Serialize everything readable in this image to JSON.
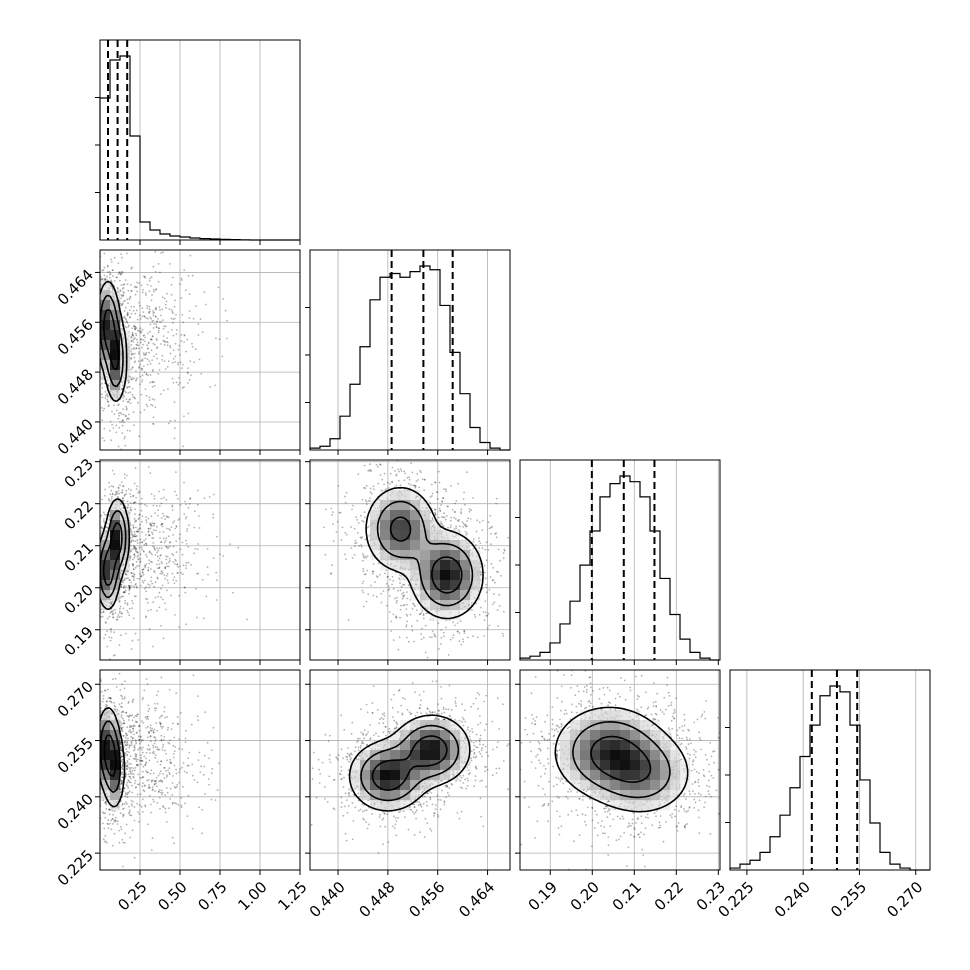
{
  "chart_data": {
    "type": "corner",
    "title": "",
    "parameters": [
      {
        "label": "",
        "range": [
          0.0,
          1.25
        ],
        "ticks": [
          "0.25",
          "0.50",
          "0.75",
          "1.00",
          "1.25"
        ],
        "tick_values": [
          0.25,
          0.5,
          0.75,
          1.0,
          1.25
        ],
        "quantiles": [
          0.05,
          0.11,
          0.17
        ],
        "hist": [
          0.71,
          0.9,
          0.92,
          0.52,
          0.09,
          0.05,
          0.03,
          0.02,
          0.015,
          0.01,
          0.007,
          0.005,
          0.003,
          0.002,
          0.001,
          0,
          0,
          0,
          0,
          0
        ]
      },
      {
        "label": "",
        "range": [
          0.4355,
          0.4676
        ],
        "ticks": [
          "0.440",
          "0.448",
          "0.456",
          "0.464"
        ],
        "tick_values": [
          0.44,
          0.448,
          0.456,
          0.464
        ],
        "quantiles": [
          0.4486,
          0.4537,
          0.4584
        ],
        "hist": [
          0.01,
          0.02,
          0.06,
          0.18,
          0.35,
          0.55,
          0.8,
          0.92,
          0.94,
          0.92,
          0.95,
          0.98,
          0.96,
          0.77,
          0.52,
          0.3,
          0.12,
          0.04,
          0.01,
          0
        ]
      },
      {
        "label": "",
        "range": [
          0.1828,
          0.2304
        ],
        "ticks": [
          "0.19",
          "0.20",
          "0.21",
          "0.22",
          "0.23"
        ],
        "tick_values": [
          0.19,
          0.2,
          0.21,
          0.22,
          0.23
        ],
        "quantiles": [
          0.1999,
          0.2075,
          0.2148
        ],
        "hist": [
          0.01,
          0.02,
          0.04,
          0.09,
          0.19,
          0.31,
          0.5,
          0.68,
          0.86,
          0.93,
          0.97,
          0.94,
          0.86,
          0.68,
          0.43,
          0.24,
          0.11,
          0.04,
          0.01,
          0
        ]
      },
      {
        "label": "",
        "range": [
          0.2205,
          0.2738
        ],
        "ticks": [
          "0.225",
          "0.240",
          "0.255",
          "0.270"
        ],
        "tick_values": [
          0.225,
          0.24,
          0.255,
          0.27
        ],
        "quantiles": [
          0.2423,
          0.249,
          0.2544
        ],
        "hist": [
          0.01,
          0.03,
          0.05,
          0.09,
          0.17,
          0.28,
          0.42,
          0.58,
          0.74,
          0.89,
          0.94,
          0.91,
          0.74,
          0.46,
          0.24,
          0.09,
          0.03,
          0.01,
          0,
          0
        ]
      }
    ],
    "pairs": [
      {
        "x": 0,
        "y": 1,
        "modes": [
          {
            "mx": 0.05,
            "my": 0.4555,
            "sx": 0.035,
            "sy": 0.0035,
            "w": 0.55
          },
          {
            "mx": 0.1,
            "my": 0.45,
            "sx": 0.035,
            "sy": 0.0035,
            "w": 0.45
          }
        ],
        "tail_x": 0.12
      },
      {
        "x": 0,
        "y": 2,
        "modes": [
          {
            "mx": 0.05,
            "my": 0.204,
            "sx": 0.035,
            "sy": 0.0045,
            "w": 0.5
          },
          {
            "mx": 0.11,
            "my": 0.212,
            "sx": 0.035,
            "sy": 0.0045,
            "w": 0.5
          }
        ],
        "tail_x": 0.12
      },
      {
        "x": 0,
        "y": 3,
        "modes": [
          {
            "mx": 0.05,
            "my": 0.253,
            "sx": 0.035,
            "sy": 0.0055,
            "w": 0.6
          },
          {
            "mx": 0.09,
            "my": 0.247,
            "sx": 0.035,
            "sy": 0.0055,
            "w": 0.4
          }
        ],
        "tail_x": 0.12
      },
      {
        "x": 1,
        "y": 2,
        "modes": [
          {
            "mx": 0.45,
            "my": 0.214,
            "sx": 0.0028,
            "sy": 0.005,
            "w": 0.45
          },
          {
            "mx": 0.4575,
            "my": 0.203,
            "sx": 0.0028,
            "sy": 0.005,
            "w": 0.55
          }
        ],
        "tail_x": 0
      },
      {
        "x": 1,
        "y": 3,
        "modes": [
          {
            "mx": 0.448,
            "my": 0.2455,
            "sx": 0.003,
            "sy": 0.0045,
            "w": 0.5
          },
          {
            "mx": 0.455,
            "my": 0.2525,
            "sx": 0.003,
            "sy": 0.0045,
            "w": 0.5
          }
        ],
        "tail_x": 0
      },
      {
        "x": 2,
        "y": 3,
        "modes": [
          {
            "mx": 0.204,
            "my": 0.252,
            "sx": 0.0065,
            "sy": 0.006,
            "w": 0.6
          },
          {
            "mx": 0.212,
            "my": 0.246,
            "sx": 0.006,
            "sy": 0.0055,
            "w": 0.4
          }
        ],
        "tail_x": 0
      }
    ],
    "grid": true,
    "contour_levels": [
      0.39,
      0.86,
      0.99
    ]
  }
}
